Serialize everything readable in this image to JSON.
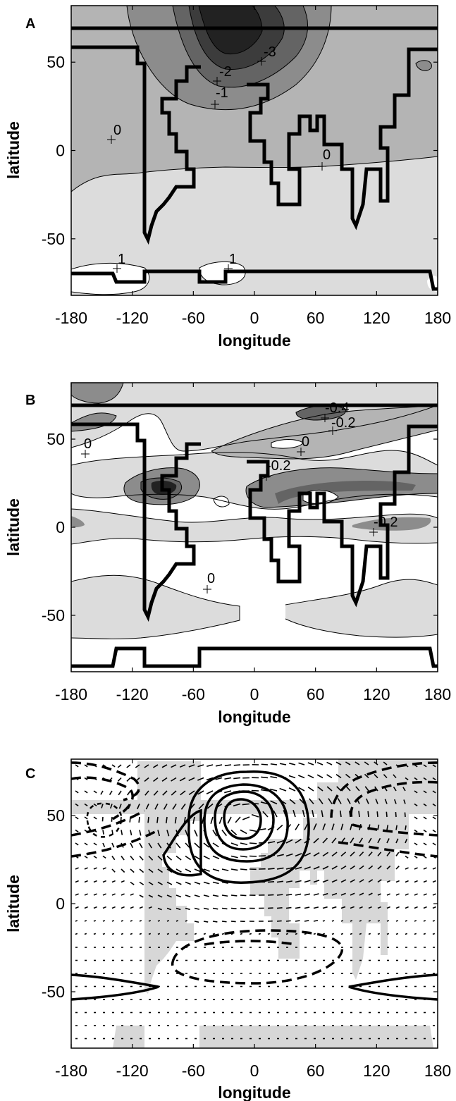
{
  "chart_data": [
    {
      "type": "contour",
      "panel_label": "A",
      "xlabel": "longitude",
      "ylabel": "latitude",
      "xlim": [
        -180,
        180
      ],
      "ylim": [
        -82,
        82
      ],
      "x_ticks": [
        "-180",
        "-120",
        "-60",
        "0",
        "60",
        "120",
        "180"
      ],
      "y_ticks": [
        "-50",
        "0",
        "50"
      ],
      "contour_labels": [
        {
          "text": "-3",
          "lon": 8,
          "lat": 51
        },
        {
          "text": "-2",
          "lon": -27,
          "lat": 39
        },
        {
          "text": "-1",
          "lon": -30,
          "lat": 26
        },
        {
          "text": "0",
          "lon": -136,
          "lat": 6
        },
        {
          "text": "0",
          "lon": 66,
          "lat": -9
        },
        {
          "text": "1",
          "lon": -132,
          "lat": -67
        },
        {
          "text": "1",
          "lon": -25,
          "lat": -67
        }
      ]
    },
    {
      "type": "contour",
      "panel_label": "B",
      "xlabel": "longitude",
      "ylabel": "latitude",
      "xlim": [
        -180,
        180
      ],
      "ylim": [
        -82,
        82
      ],
      "x_ticks": [
        "-180",
        "-120",
        "-60",
        "0",
        "60",
        "120",
        "180"
      ],
      "y_ticks": [
        "-50",
        "0",
        "50"
      ],
      "contour_labels": [
        {
          "text": "-0.4",
          "lon": 70,
          "lat": 63
        },
        {
          "text": "-0.2",
          "lon": 75,
          "lat": 55
        },
        {
          "text": "0",
          "lon": -168,
          "lat": 42
        },
        {
          "text": "0",
          "lon": 47,
          "lat": 43
        },
        {
          "text": "-0.2",
          "lon": 12,
          "lat": 30
        },
        {
          "text": "-0.2",
          "lon": 120,
          "lat": -2
        },
        {
          "text": "0",
          "lon": -43,
          "lat": -35
        }
      ]
    },
    {
      "type": "contour_vector",
      "panel_label": "C",
      "xlabel": "longitude",
      "ylabel": "latitude",
      "xlim": [
        -180,
        180
      ],
      "ylim": [
        -82,
        82
      ],
      "x_ticks": [
        "-180",
        "-120",
        "-60",
        "0",
        "60",
        "120",
        "180"
      ],
      "y_ticks": [
        "-50",
        "0",
        "50"
      ]
    }
  ],
  "colors": {
    "fill_levels": [
      "#ffffff",
      "#dcdcdc",
      "#b4b4b4",
      "#8c8c8c",
      "#646464",
      "#3c3c3c",
      "#222222"
    ],
    "mask": "#d7d7d7",
    "line": "#000000"
  }
}
